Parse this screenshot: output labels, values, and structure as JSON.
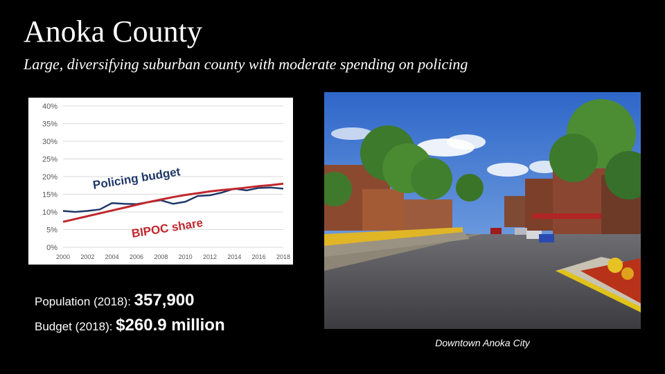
{
  "slide": {
    "title": "Anoka County",
    "subtitle": "Large, diversifying suburban county with moderate spending on policing"
  },
  "stats": {
    "population_label": "Population (2018):",
    "population_value": "357,900",
    "budget_label": "Budget (2018):",
    "budget_value": "$260.9 million"
  },
  "photo": {
    "caption": "Downtown Anoka City"
  },
  "chart_data": {
    "type": "line",
    "title": "",
    "xlabel": "",
    "ylabel": "",
    "x": [
      2000,
      2001,
      2002,
      2003,
      2004,
      2005,
      2006,
      2007,
      2008,
      2009,
      2010,
      2011,
      2012,
      2013,
      2014,
      2015,
      2016,
      2017,
      2018
    ],
    "x_ticks": [
      2000,
      2002,
      2004,
      2006,
      2008,
      2010,
      2012,
      2014,
      2016,
      2018
    ],
    "y_ticks": [
      "0%",
      "5%",
      "10%",
      "15%",
      "20%",
      "25%",
      "30%",
      "35%",
      "40%"
    ],
    "ylim": [
      0,
      40
    ],
    "grid": true,
    "series": [
      {
        "name": "Policing budget",
        "color": "#1f3868",
        "values": [
          10.3,
          10.0,
          10.3,
          10.7,
          12.5,
          12.3,
          12.2,
          12.8,
          13.3,
          12.3,
          12.9,
          14.5,
          14.7,
          15.5,
          16.6,
          16.1,
          16.8,
          16.9,
          16.6
        ]
      },
      {
        "name": "BIPOC share",
        "color": "#c0272d",
        "values": [
          7.2,
          8.0,
          8.8,
          9.6,
          10.4,
          11.2,
          12.0,
          12.8,
          13.5,
          14.2,
          14.8,
          15.3,
          15.8,
          16.2,
          16.5,
          16.9,
          17.3,
          17.6,
          18.0
        ]
      }
    ]
  }
}
